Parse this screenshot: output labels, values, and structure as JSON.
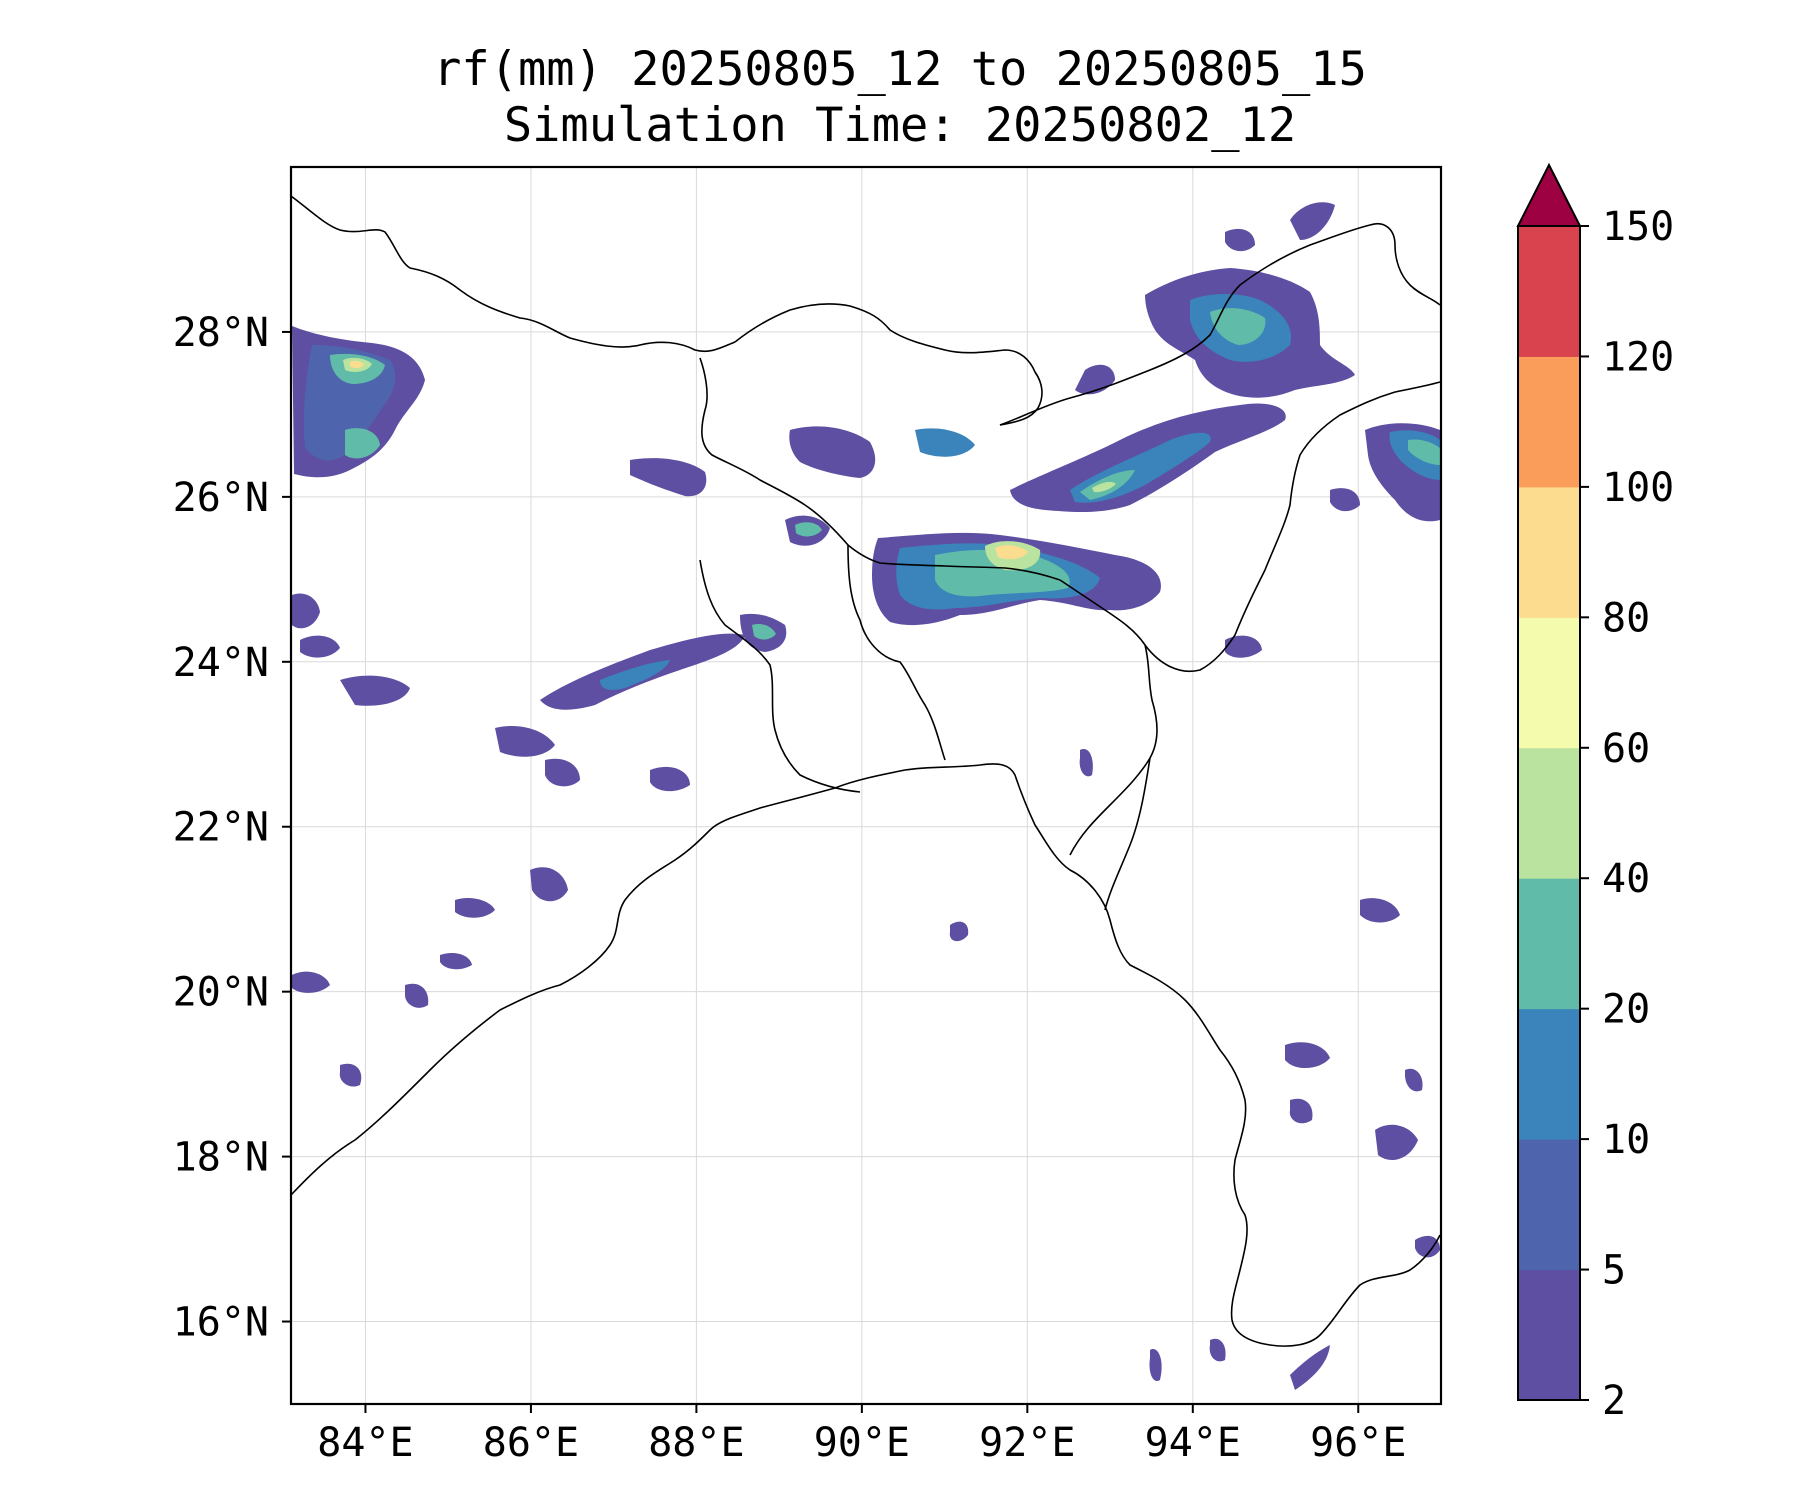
{
  "figure": {
    "title_line1": "rf(mm) 20250805_12 to 20250805_15",
    "title_line2": "Simulation Time: 20250802_12"
  },
  "map": {
    "lon_range": [
      83.1,
      97.0
    ],
    "lat_range": [
      15.0,
      30.0
    ],
    "x_ticks": [
      "84°E",
      "86°E",
      "88°E",
      "90°E",
      "92°E",
      "94°E",
      "96°E"
    ],
    "x_tick_values": [
      84,
      86,
      88,
      90,
      92,
      94,
      96
    ],
    "y_ticks": [
      "16°N",
      "18°N",
      "20°N",
      "22°N",
      "24°N",
      "26°N",
      "28°N"
    ],
    "y_tick_values": [
      16,
      18,
      20,
      22,
      24,
      26,
      28
    ],
    "gridlines": true
  },
  "colorbar": {
    "extend": "max",
    "levels": [
      "2",
      "5",
      "10",
      "20",
      "40",
      "60",
      "80",
      "100",
      "120",
      "150"
    ],
    "colors": [
      "#5e4fa2",
      "#4e65ad",
      "#3a84bb",
      "#60bba8",
      "#bae3a0",
      "#f4fbad",
      "#fcdc8e",
      "#fa9c5a",
      "#d8434e",
      "#9e0142"
    ]
  },
  "legend": {
    "colorbar_orientation": "vertical",
    "placement": "right"
  }
}
